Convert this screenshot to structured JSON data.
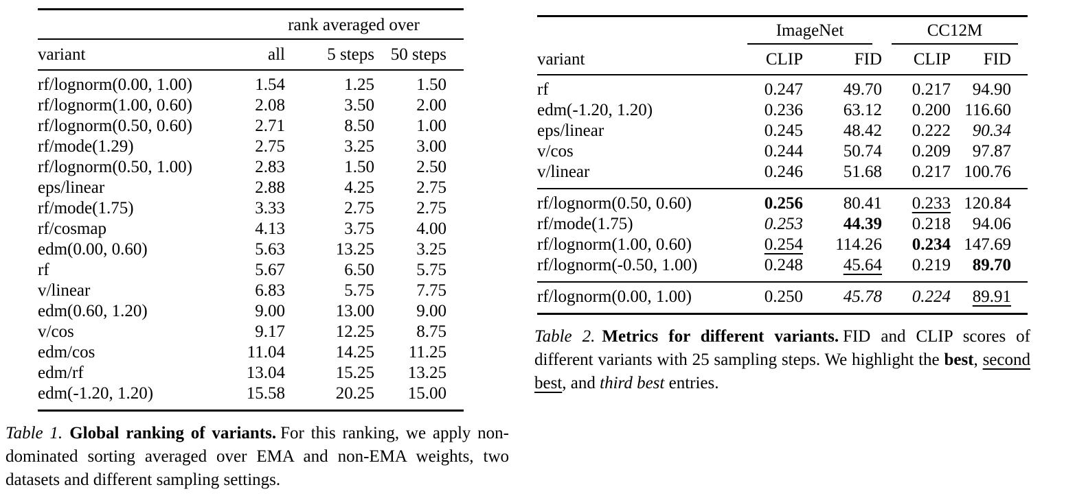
{
  "page": {
    "background": "#ffffff",
    "text_color": "#000000"
  },
  "table1": {
    "spanner": "rank averaged over",
    "columns": [
      "variant",
      "all",
      "5 steps",
      "50 steps"
    ],
    "rows": [
      {
        "variant": "rf/lognorm(0.00, 1.00)",
        "values": [
          "1.54",
          "1.25",
          "1.50"
        ]
      },
      {
        "variant": "rf/lognorm(1.00, 0.60)",
        "values": [
          "2.08",
          "3.50",
          "2.00"
        ]
      },
      {
        "variant": "rf/lognorm(0.50, 0.60)",
        "values": [
          "2.71",
          "8.50",
          "1.00"
        ]
      },
      {
        "variant": "rf/mode(1.29)",
        "values": [
          "2.75",
          "3.25",
          "3.00"
        ]
      },
      {
        "variant": "rf/lognorm(0.50, 1.00)",
        "values": [
          "2.83",
          "1.50",
          "2.50"
        ]
      },
      {
        "variant": "eps/linear",
        "values": [
          "2.88",
          "4.25",
          "2.75"
        ]
      },
      {
        "variant": "rf/mode(1.75)",
        "values": [
          "3.33",
          "2.75",
          "2.75"
        ]
      },
      {
        "variant": "rf/cosmap",
        "values": [
          "4.13",
          "3.75",
          "4.00"
        ]
      },
      {
        "variant": "edm(0.00, 0.60)",
        "values": [
          "5.63",
          "13.25",
          "3.25"
        ]
      },
      {
        "variant": "rf",
        "values": [
          "5.67",
          "6.50",
          "5.75"
        ]
      },
      {
        "variant": "v/linear",
        "values": [
          "6.83",
          "5.75",
          "7.75"
        ]
      },
      {
        "variant": "edm(0.60, 1.20)",
        "values": [
          "9.00",
          "13.00",
          "9.00"
        ]
      },
      {
        "variant": "v/cos",
        "values": [
          "9.17",
          "12.25",
          "8.75"
        ]
      },
      {
        "variant": "edm/cos",
        "values": [
          "11.04",
          "14.25",
          "11.25"
        ]
      },
      {
        "variant": "edm/rf",
        "values": [
          "13.04",
          "15.25",
          "13.25"
        ]
      },
      {
        "variant": "edm(-1.20, 1.20)",
        "values": [
          "15.58",
          "20.25",
          "15.00"
        ]
      }
    ],
    "caption": {
      "label": "Table 1.",
      "title": "Global ranking of variants.",
      "text": "For this ranking, we apply non-dominated sorting averaged over EMA and non-EMA weights, two datasets and different sampling settings."
    }
  },
  "table2": {
    "variant_header": "variant",
    "group_headers": [
      "ImageNet",
      "CC12M"
    ],
    "metric_headers": [
      "CLIP",
      "FID",
      "CLIP",
      "FID"
    ],
    "style_legend": {
      "b": "best (bold)",
      "u": "second best (underline)",
      "i": "third best (italic)"
    },
    "blocks": [
      {
        "rows": [
          {
            "variant": "rf",
            "cells": [
              [
                "0.247",
                ""
              ],
              [
                "49.70",
                ""
              ],
              [
                "0.217",
                ""
              ],
              [
                "94.90",
                ""
              ]
            ]
          },
          {
            "variant": "edm(-1.20, 1.20)",
            "cells": [
              [
                "0.236",
                ""
              ],
              [
                "63.12",
                ""
              ],
              [
                "0.200",
                ""
              ],
              [
                "116.60",
                ""
              ]
            ]
          },
          {
            "variant": "eps/linear",
            "cells": [
              [
                "0.245",
                ""
              ],
              [
                "48.42",
                ""
              ],
              [
                "0.222",
                ""
              ],
              [
                "90.34",
                "i"
              ]
            ]
          },
          {
            "variant": "v/cos",
            "cells": [
              [
                "0.244",
                ""
              ],
              [
                "50.74",
                ""
              ],
              [
                "0.209",
                ""
              ],
              [
                "97.87",
                ""
              ]
            ]
          },
          {
            "variant": "v/linear",
            "cells": [
              [
                "0.246",
                ""
              ],
              [
                "51.68",
                ""
              ],
              [
                "0.217",
                ""
              ],
              [
                "100.76",
                ""
              ]
            ]
          }
        ]
      },
      {
        "rows": [
          {
            "variant": "rf/lognorm(0.50, 0.60)",
            "cells": [
              [
                "0.256",
                "b"
              ],
              [
                "80.41",
                ""
              ],
              [
                "0.233",
                "u"
              ],
              [
                "120.84",
                ""
              ]
            ]
          },
          {
            "variant": "rf/mode(1.75)",
            "cells": [
              [
                "0.253",
                "i"
              ],
              [
                "44.39",
                "b"
              ],
              [
                "0.218",
                ""
              ],
              [
                "94.06",
                ""
              ]
            ]
          },
          {
            "variant": "rf/lognorm(1.00, 0.60)",
            "cells": [
              [
                "0.254",
                "u"
              ],
              [
                "114.26",
                ""
              ],
              [
                "0.234",
                "b"
              ],
              [
                "147.69",
                ""
              ]
            ]
          },
          {
            "variant": "rf/lognorm(-0.50, 1.00)",
            "cells": [
              [
                "0.248",
                ""
              ],
              [
                "45.64",
                "u"
              ],
              [
                "0.219",
                ""
              ],
              [
                "89.70",
                "b"
              ]
            ]
          }
        ]
      },
      {
        "rows": [
          {
            "variant": "rf/lognorm(0.00, 1.00)",
            "cells": [
              [
                "0.250",
                ""
              ],
              [
                "45.78",
                "i"
              ],
              [
                "0.224",
                "i"
              ],
              [
                "89.91",
                "u"
              ]
            ]
          }
        ]
      }
    ],
    "caption": {
      "label": "Table 2.",
      "title": "Metrics for different variants.",
      "segments": [
        {
          "t": "FID and CLIP scores of different variants with 25 sampling steps. We highlight the ",
          "s": ""
        },
        {
          "t": "best",
          "s": "b"
        },
        {
          "t": ", ",
          "s": ""
        },
        {
          "t": "second best",
          "s": "u"
        },
        {
          "t": ", and ",
          "s": ""
        },
        {
          "t": "third best",
          "s": "i"
        },
        {
          "t": " entries.",
          "s": ""
        }
      ]
    }
  }
}
